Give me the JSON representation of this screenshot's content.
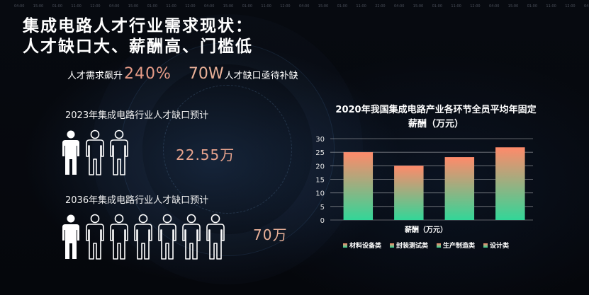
{
  "title_line1": "集成电路人才行业需求现状：",
  "title_line2": "人才缺口大、薪酬高、门槛低",
  "stat": {
    "prefix": "人才需求飙升",
    "growth": "240%",
    "gap_value": "70W",
    "suffix": "人才缺口亟待补缺"
  },
  "forecast_2023": {
    "label": "2023年集成电路行业人才缺口预计",
    "value": "22.55万",
    "color": "#e8a48e"
  },
  "forecast_2036": {
    "label": "2036年集成电路行业人才缺口预计",
    "value": "70万",
    "color": "#e8b098"
  },
  "time_ticks": [
    "04:00",
    "15:00",
    "01:00",
    "11:00",
    "12:00",
    "04:00",
    "15:00",
    "01:00",
    "11:00",
    "12:00",
    "04:00",
    "15:00",
    "01:00",
    "11:00",
    "12:00",
    "04:00",
    "15:00",
    "01:00",
    "11:00",
    "22:00",
    "04:00",
    "15:00",
    "01:00",
    "11:00",
    "12:00",
    "04:00",
    "15:00",
    "01:00",
    "11:00",
    "12:00",
    "04:00"
  ],
  "chart_data": {
    "type": "bar",
    "title": "2020年我国集成电路产业各环节全员平均年固定薪酬（万元）",
    "xlabel": "薪酬（万元）",
    "ylabel": "",
    "ylim": [
      0,
      30
    ],
    "yticks": [
      0,
      5,
      10,
      15,
      20,
      25,
      30
    ],
    "categories": [
      "材料设备类",
      "封装测试类",
      "生产制造类",
      "设计类"
    ],
    "values": [
      25,
      20,
      23.2,
      26.8
    ],
    "grid": true,
    "legend": "bottom",
    "colors": {
      "top": "#ff8a6a",
      "bottom": "#32d698"
    }
  }
}
